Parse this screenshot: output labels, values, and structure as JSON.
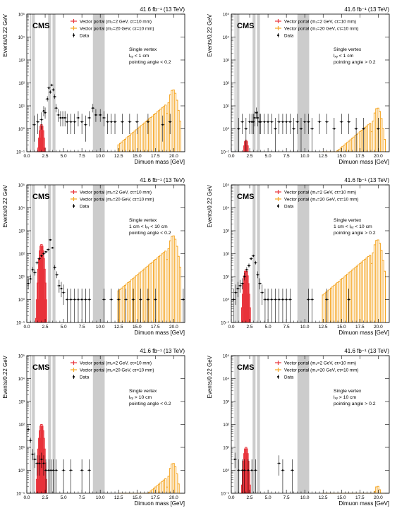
{
  "common": {
    "lumi_label": "41.6 fb⁻¹ (13 TeV)",
    "experiment": "CMS",
    "xlabel": "Dimuon mass [GeV]",
    "ylabel": "Events/0.22 GeV",
    "legend": {
      "sig_low": "Vector portal (m₂=2 GeV, cτ=10 mm)",
      "sig_high": "Vector portal (m₂=20 GeV, cτ=10 mm)",
      "data": "Data"
    },
    "xlim": [
      0,
      21.5
    ],
    "ylog": true,
    "ylim": [
      0.1,
      100000
    ],
    "x_ticks": [
      "0.0",
      "2.5",
      "5.0",
      "7.5",
      "10.0",
      "12.5",
      "15.0",
      "17.5",
      "20.0"
    ],
    "y_ticks": [
      "10⁻¹",
      "10⁰",
      "10¹",
      "10²",
      "10³",
      "10⁴",
      "10⁵"
    ],
    "colors": {
      "sig_low": "#e8323a",
      "sig_high": "#f5a623",
      "data": "#000000",
      "veto": "#cccccc"
    },
    "veto_bands": [
      [
        0.43,
        0.6
      ],
      [
        0.7,
        1.1
      ],
      [
        2.9,
        3.3
      ],
      [
        3.5,
        3.9
      ],
      [
        9.0,
        10.6
      ]
    ]
  },
  "chart_data": [
    {
      "type": "scatter",
      "region": [
        "Single vertex",
        "lₓᵧ < 1 cm",
        "pointing angle < 0.2"
      ],
      "sig_low_peak": 1.5,
      "sig_high_peak": 50,
      "data_points": [
        [
          1.0,
          1.5
        ],
        [
          1.5,
          2
        ],
        [
          2.0,
          2.5
        ],
        [
          2.3,
          6
        ],
        [
          2.5,
          5
        ],
        [
          2.8,
          20
        ],
        [
          3.0,
          60
        ],
        [
          3.2,
          40
        ],
        [
          3.4,
          80
        ],
        [
          3.6,
          50
        ],
        [
          3.8,
          25
        ],
        [
          4.0,
          8
        ],
        [
          4.3,
          4
        ],
        [
          4.6,
          3
        ],
        [
          4.9,
          3
        ],
        [
          5.2,
          3
        ],
        [
          5.5,
          2
        ],
        [
          6.0,
          2
        ],
        [
          6.5,
          2
        ],
        [
          7.0,
          3
        ],
        [
          7.5,
          2
        ],
        [
          8.0,
          1.5
        ],
        [
          8.5,
          3
        ],
        [
          9.0,
          8
        ],
        [
          9.4,
          4
        ],
        [
          10.0,
          4
        ],
        [
          10.5,
          3
        ],
        [
          11.0,
          2
        ],
        [
          11.5,
          2
        ],
        [
          12.0,
          2
        ],
        [
          13.0,
          2
        ],
        [
          14.0,
          2
        ],
        [
          15.0,
          2
        ],
        [
          16.5,
          2
        ],
        [
          18.5,
          1.5
        ],
        [
          19.5,
          2
        ]
      ]
    },
    {
      "type": "scatter",
      "region": [
        "Single vertex",
        "lₓᵧ < 1 cm",
        "pointing angle > 0.2"
      ],
      "sig_low_peak": 0.3,
      "sig_high_peak": 8,
      "data_points": [
        [
          1.0,
          1
        ],
        [
          1.5,
          2
        ],
        [
          2.0,
          1
        ],
        [
          2.5,
          2
        ],
        [
          2.8,
          2
        ],
        [
          3.0,
          2
        ],
        [
          3.2,
          3
        ],
        [
          3.4,
          5
        ],
        [
          3.6,
          3
        ],
        [
          3.8,
          2
        ],
        [
          4.0,
          2
        ],
        [
          4.5,
          2
        ],
        [
          5.0,
          2
        ],
        [
          5.5,
          2
        ],
        [
          6.0,
          1
        ],
        [
          6.5,
          2
        ],
        [
          7.0,
          2
        ],
        [
          7.5,
          2
        ],
        [
          8.0,
          2
        ],
        [
          8.5,
          1
        ],
        [
          9.0,
          2
        ],
        [
          9.5,
          1
        ],
        [
          10.0,
          2
        ],
        [
          10.5,
          2
        ],
        [
          11.0,
          1
        ],
        [
          12.0,
          2
        ],
        [
          13.0,
          2
        ],
        [
          14.0,
          1
        ],
        [
          15.0,
          2
        ],
        [
          16.0,
          2
        ],
        [
          17.0,
          1
        ],
        [
          18.0,
          1
        ],
        [
          20.0,
          1
        ]
      ]
    },
    {
      "type": "scatter",
      "region": [
        "Single vertex",
        "1 cm < lₓᵧ < 10 cm",
        "pointing angle < 0.2"
      ],
      "sig_low_peak": 250,
      "sig_high_peak": 600,
      "data_points": [
        [
          0.2,
          5
        ],
        [
          0.5,
          8
        ],
        [
          0.8,
          20
        ],
        [
          1.1,
          15
        ],
        [
          1.4,
          40
        ],
        [
          1.7,
          60
        ],
        [
          2.0,
          80
        ],
        [
          2.3,
          100
        ],
        [
          2.6,
          120
        ],
        [
          2.9,
          150
        ],
        [
          3.2,
          400
        ],
        [
          3.5,
          180
        ],
        [
          3.8,
          25
        ],
        [
          4.1,
          12
        ],
        [
          4.4,
          4
        ],
        [
          4.7,
          3
        ],
        [
          5.0,
          2
        ],
        [
          5.5,
          1
        ],
        [
          6.0,
          1
        ],
        [
          6.5,
          1
        ],
        [
          7.0,
          1
        ],
        [
          7.5,
          1
        ],
        [
          8.0,
          1
        ],
        [
          8.5,
          1
        ],
        [
          10.5,
          1
        ],
        [
          11.5,
          1
        ],
        [
          12.5,
          1
        ],
        [
          13.5,
          1
        ],
        [
          14.5,
          1
        ],
        [
          15.5,
          1
        ],
        [
          16.5,
          1
        ],
        [
          17.5,
          1
        ],
        [
          21.3,
          1
        ]
      ]
    },
    {
      "type": "scatter",
      "region": [
        "Single vertex",
        "1 cm < lₓᵧ < 10 cm",
        "pointing angle > 0.2"
      ],
      "sig_low_peak": 20,
      "sig_high_peak": 400,
      "data_points": [
        [
          0.3,
          1
        ],
        [
          0.6,
          2
        ],
        [
          0.9,
          3
        ],
        [
          1.2,
          4
        ],
        [
          1.5,
          5
        ],
        [
          1.8,
          10
        ],
        [
          2.1,
          20
        ],
        [
          2.4,
          30
        ],
        [
          2.7,
          60
        ],
        [
          3.0,
          80
        ],
        [
          3.3,
          40
        ],
        [
          3.6,
          12
        ],
        [
          3.9,
          5
        ],
        [
          4.2,
          2
        ],
        [
          4.6,
          1
        ],
        [
          5.0,
          1
        ],
        [
          5.5,
          1
        ],
        [
          6.0,
          1
        ],
        [
          6.5,
          1
        ],
        [
          7.0,
          1
        ],
        [
          7.5,
          1
        ],
        [
          8.0,
          1
        ],
        [
          10.5,
          1
        ],
        [
          11.0,
          1
        ],
        [
          13.0,
          1
        ],
        [
          16.0,
          1
        ]
      ]
    },
    {
      "type": "scatter",
      "region": [
        "Single vertex",
        "lₓᵧ > 10 cm",
        "pointing angle < 0.2"
      ],
      "sig_low_peak": 100,
      "sig_high_peak": 2,
      "data_points": [
        [
          0.2,
          60
        ],
        [
          0.5,
          20
        ],
        [
          0.8,
          5
        ],
        [
          1.1,
          3
        ],
        [
          1.4,
          2
        ],
        [
          1.7,
          2
        ],
        [
          2.0,
          3
        ],
        [
          2.3,
          2
        ],
        [
          2.6,
          1
        ],
        [
          3.0,
          1
        ],
        [
          3.3,
          1
        ],
        [
          3.6,
          1
        ],
        [
          4.0,
          1
        ],
        [
          5.0,
          1
        ],
        [
          6.0,
          1
        ],
        [
          7.5,
          1
        ],
        [
          8.5,
          1
        ]
      ]
    },
    {
      "type": "scatter",
      "region": [
        "Single vertex",
        "lₓᵧ > 10 cm",
        "pointing angle > 0.2"
      ],
      "sig_low_peak": 10,
      "sig_high_peak": 0.2,
      "data_points": [
        [
          0.5,
          3
        ],
        [
          1.0,
          1
        ],
        [
          1.5,
          1
        ],
        [
          1.8,
          1
        ],
        [
          2.3,
          1
        ],
        [
          2.8,
          1
        ],
        [
          3.3,
          1
        ],
        [
          6.5,
          2
        ],
        [
          7.0,
          1
        ],
        [
          8.3,
          1
        ]
      ]
    }
  ]
}
